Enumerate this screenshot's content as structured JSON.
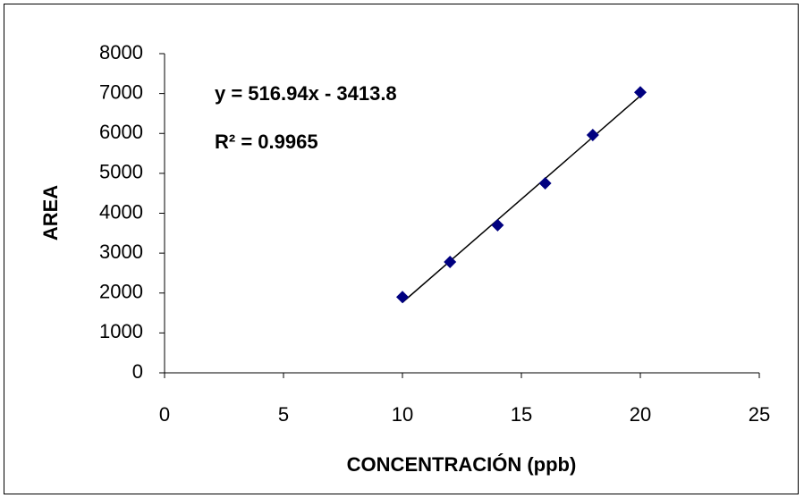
{
  "chart_data": {
    "type": "scatter",
    "x_label": "CONCENTRACIÓN (ppb)",
    "y_label": "AREA",
    "annotations": [
      "y = 516.94x - 3413.8",
      "R² = 0.9965"
    ],
    "trendline": true,
    "series": [
      {
        "color": "#000080",
        "x": [
          10,
          12,
          14,
          16,
          18,
          20
        ],
        "values": [
          1900,
          2780,
          3700,
          4750,
          5960,
          7030
        ]
      }
    ],
    "xlim": [
      0,
      25
    ],
    "xticks": [
      0,
      5,
      10,
      15,
      20,
      25
    ],
    "ylim": [
      0,
      8000
    ],
    "yticks": [
      0,
      1000,
      2000,
      3000,
      4000,
      5000,
      6000,
      7000,
      8000
    ],
    "grid": false
  }
}
